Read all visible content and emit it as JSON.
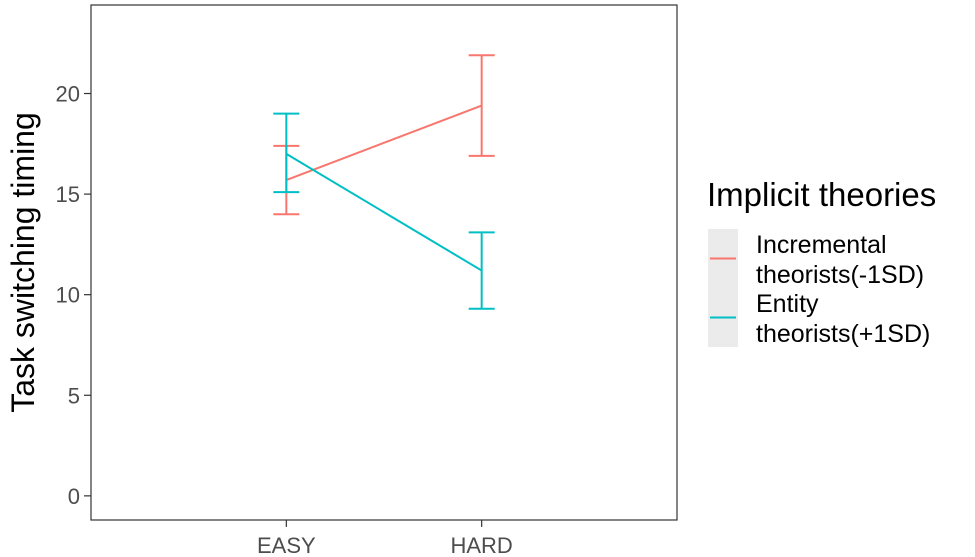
{
  "chart_data": {
    "type": "line",
    "title": "",
    "xlabel": "",
    "ylabel": "Task switching timing",
    "categories": [
      "EASY",
      "HARD"
    ],
    "ylim": [
      -1.2,
      24.4
    ],
    "yticks": [
      0,
      5,
      10,
      15,
      20
    ],
    "grid": false,
    "error_bars": true,
    "legend": {
      "title": "Implicit theories",
      "placement": "right"
    },
    "series": [
      {
        "name": "Incremental theorists(-1SD)",
        "label_lines": [
          "Incremental",
          "theorists(-1SD)"
        ],
        "color": "#F8766D",
        "values": [
          15.7,
          19.4
        ],
        "lower": [
          14.0,
          16.9
        ],
        "upper": [
          17.4,
          21.9
        ]
      },
      {
        "name": "Entity theorists(+1SD)",
        "label_lines": [
          "Entity",
          "theorists(+1SD)"
        ],
        "color": "#00BFC4",
        "values": [
          17.0,
          11.2
        ],
        "lower": [
          15.1,
          9.3
        ],
        "upper": [
          19.0,
          13.1
        ]
      }
    ]
  }
}
